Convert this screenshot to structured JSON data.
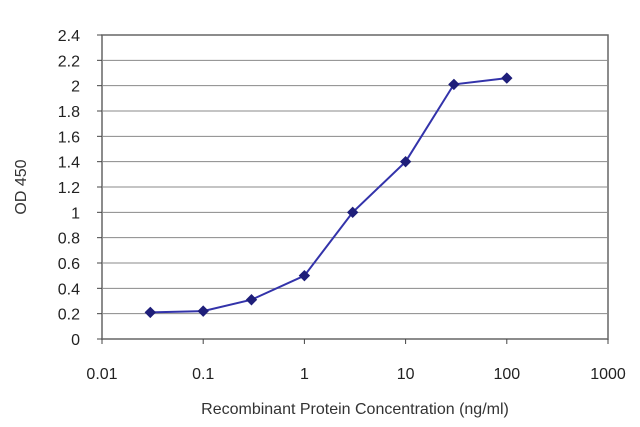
{
  "chart_data": {
    "type": "line",
    "title": "",
    "xlabel": "Recombinant Protein Concentration (ng/ml)",
    "ylabel": "OD 450",
    "x_scale": "log",
    "xlim": [
      0.01,
      1000
    ],
    "ylim": [
      0,
      2.4
    ],
    "x_ticks": [
      "0.01",
      "0.1",
      "1",
      "10",
      "100",
      "1000"
    ],
    "y_ticks": [
      "0",
      "0.2",
      "0.4",
      "0.6",
      "0.8",
      "1",
      "1.2",
      "1.4",
      "1.6",
      "1.8",
      "2",
      "2.2",
      "2.4"
    ],
    "grid": "horizontal",
    "legend": "none",
    "series": [
      {
        "color": "#3333aa",
        "x": [
          0.03,
          0.1,
          0.3,
          1,
          3,
          10,
          30,
          100
        ],
        "y": [
          0.21,
          0.22,
          0.31,
          0.5,
          1.0,
          1.4,
          2.01,
          2.06
        ]
      }
    ]
  }
}
